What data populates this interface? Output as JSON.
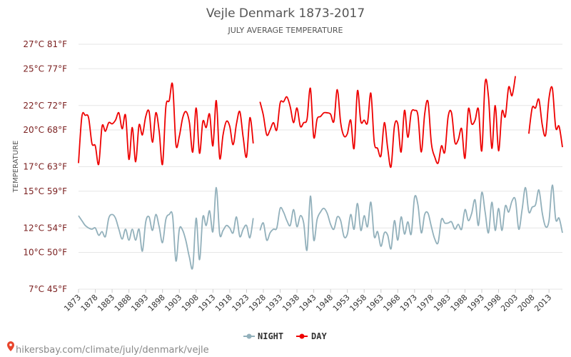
{
  "colors": {
    "night": "#92b0bb",
    "day": "#ee0000",
    "source_pin": "#e8452c"
  },
  "source_text": "hikersbay.com/climate/july/denmark/vejle",
  "chart_data": {
    "type": "line",
    "title": "Vejle Denmark 1873-2017",
    "subtitle": "JULY AVERAGE TEMPERATURE",
    "ylabel": "TEMPERATURE",
    "ylim": [
      7,
      27
    ],
    "yticks": [
      {
        "value": 7,
        "label": "7°C 45°F"
      },
      {
        "value": 10,
        "label": "10°C 50°F"
      },
      {
        "value": 12,
        "label": "12°C 54°F"
      },
      {
        "value": 15,
        "label": "15°C 59°F"
      },
      {
        "value": 17,
        "label": "17°C 63°F"
      },
      {
        "value": 20,
        "label": "20°C 68°F"
      },
      {
        "value": 22,
        "label": "22°C 72°F"
      },
      {
        "value": 25,
        "label": "25°C 77°F"
      },
      {
        "value": 27,
        "label": "27°C 81°F"
      }
    ],
    "xlim": [
      1873,
      2017
    ],
    "xticks": [
      1873,
      1878,
      1883,
      1888,
      1893,
      1898,
      1903,
      1908,
      1913,
      1918,
      1923,
      1928,
      1933,
      1938,
      1943,
      1948,
      1953,
      1958,
      1963,
      1968,
      1973,
      1978,
      1983,
      1988,
      1993,
      1998,
      2003,
      2008,
      2013
    ],
    "legend": [
      "NIGHT",
      "DAY"
    ],
    "legend_position": "bottom",
    "grid": true,
    "series": [
      {
        "name": "NIGHT",
        "points": [
          [
            1873,
            13.0
          ],
          [
            1874,
            12.6
          ],
          [
            1875,
            12.2
          ],
          [
            1876,
            12.0
          ],
          [
            1877,
            11.9
          ],
          [
            1878,
            12.0
          ],
          [
            1879,
            11.4
          ],
          [
            1880,
            11.7
          ],
          [
            1881,
            11.3
          ],
          [
            1882,
            12.8
          ],
          [
            1883,
            13.1
          ],
          [
            1884,
            12.8
          ],
          [
            1885,
            11.9
          ],
          [
            1886,
            11.1
          ],
          [
            1887,
            11.9
          ],
          [
            1888,
            11.0
          ],
          [
            1889,
            11.9
          ],
          [
            1890,
            11.0
          ],
          [
            1891,
            11.9
          ],
          [
            1892,
            10.1
          ],
          [
            1893,
            12.5
          ],
          [
            1894,
            12.9
          ],
          [
            1895,
            11.8
          ],
          [
            1896,
            13.1
          ],
          [
            1897,
            12.1
          ],
          [
            1898,
            10.8
          ],
          [
            1899,
            12.7
          ],
          [
            1900,
            13.1
          ],
          [
            1901,
            13.0
          ],
          [
            1902,
            9.3
          ],
          [
            1903,
            11.9
          ],
          [
            1904,
            11.8
          ],
          [
            1905,
            10.9
          ],
          [
            1906,
            9.6
          ],
          [
            1907,
            8.8
          ],
          [
            1908,
            12.8
          ],
          [
            1909,
            9.4
          ],
          [
            1910,
            12.9
          ],
          [
            1911,
            12.2
          ],
          [
            1912,
            13.4
          ],
          [
            1913,
            11.7
          ],
          [
            1914,
            15.3
          ],
          [
            1915,
            11.5
          ],
          [
            1916,
            11.8
          ],
          [
            1917,
            12.2
          ],
          [
            1918,
            12.0
          ],
          [
            1919,
            11.6
          ],
          [
            1920,
            12.9
          ],
          [
            1921,
            11.3
          ],
          [
            1922,
            11.9
          ],
          [
            1923,
            12.2
          ],
          [
            1924,
            11.2
          ],
          [
            1925,
            12.8
          ],
          [
            1927,
            11.8
          ],
          [
            1928,
            12.4
          ],
          [
            1929,
            11.0
          ],
          [
            1930,
            11.6
          ],
          [
            1931,
            11.9
          ],
          [
            1932,
            12.0
          ],
          [
            1933,
            13.6
          ],
          [
            1934,
            13.3
          ],
          [
            1935,
            12.6
          ],
          [
            1936,
            12.2
          ],
          [
            1937,
            13.5
          ],
          [
            1938,
            12.1
          ],
          [
            1939,
            13.0
          ],
          [
            1940,
            12.4
          ],
          [
            1941,
            10.2
          ],
          [
            1942,
            14.6
          ],
          [
            1943,
            11.0
          ],
          [
            1944,
            12.7
          ],
          [
            1945,
            13.3
          ],
          [
            1946,
            13.6
          ],
          [
            1947,
            13.2
          ],
          [
            1948,
            12.3
          ],
          [
            1949,
            11.9
          ],
          [
            1950,
            12.9
          ],
          [
            1951,
            12.6
          ],
          [
            1952,
            11.3
          ],
          [
            1953,
            11.5
          ],
          [
            1954,
            13.1
          ],
          [
            1955,
            11.9
          ],
          [
            1956,
            14.0
          ],
          [
            1957,
            11.8
          ],
          [
            1958,
            13.0
          ],
          [
            1959,
            12.1
          ],
          [
            1960,
            14.1
          ],
          [
            1961,
            11.3
          ],
          [
            1962,
            11.7
          ],
          [
            1963,
            10.5
          ],
          [
            1964,
            11.6
          ],
          [
            1965,
            11.4
          ],
          [
            1966,
            10.3
          ],
          [
            1967,
            12.6
          ],
          [
            1968,
            11.0
          ],
          [
            1969,
            12.9
          ],
          [
            1970,
            11.5
          ],
          [
            1971,
            12.5
          ],
          [
            1972,
            11.5
          ],
          [
            1973,
            14.5
          ],
          [
            1974,
            13.9
          ],
          [
            1975,
            11.6
          ],
          [
            1976,
            13.1
          ],
          [
            1977,
            13.2
          ],
          [
            1978,
            12.1
          ],
          [
            1979,
            11.1
          ],
          [
            1980,
            10.8
          ],
          [
            1981,
            12.7
          ],
          [
            1982,
            12.4
          ],
          [
            1983,
            12.4
          ],
          [
            1984,
            12.5
          ],
          [
            1985,
            11.9
          ],
          [
            1986,
            12.3
          ],
          [
            1987,
            11.9
          ],
          [
            1988,
            13.5
          ],
          [
            1989,
            12.6
          ],
          [
            1990,
            13.2
          ],
          [
            1991,
            14.3
          ],
          [
            1992,
            12.2
          ],
          [
            1993,
            14.9
          ],
          [
            1994,
            13.3
          ],
          [
            1995,
            11.6
          ],
          [
            1996,
            14.1
          ],
          [
            1997,
            11.8
          ],
          [
            1998,
            13.6
          ],
          [
            1999,
            11.8
          ],
          [
            2000,
            13.8
          ],
          [
            2001,
            13.3
          ],
          [
            2002,
            14.2
          ],
          [
            2003,
            14.3
          ],
          [
            2004,
            11.9
          ],
          [
            2005,
            13.5
          ],
          [
            2006,
            15.3
          ],
          [
            2007,
            13.3
          ],
          [
            2008,
            13.7
          ],
          [
            2009,
            13.9
          ],
          [
            2010,
            15.1
          ],
          [
            2011,
            13.2
          ],
          [
            2012,
            12.1
          ],
          [
            2013,
            12.6
          ],
          [
            2014,
            15.5
          ],
          [
            2015,
            12.7
          ],
          [
            2016,
            12.8
          ],
          [
            2017,
            11.6
          ]
        ]
      },
      {
        "name": "DAY",
        "points": [
          [
            1873,
            17.3
          ],
          [
            1874,
            21.1
          ],
          [
            1875,
            21.2
          ],
          [
            1876,
            21.0
          ],
          [
            1877,
            18.9
          ],
          [
            1878,
            18.7
          ],
          [
            1879,
            17.2
          ],
          [
            1880,
            20.3
          ],
          [
            1881,
            19.9
          ],
          [
            1882,
            20.6
          ],
          [
            1883,
            20.5
          ],
          [
            1884,
            20.8
          ],
          [
            1885,
            21.4
          ],
          [
            1886,
            20.1
          ],
          [
            1887,
            21.2
          ],
          [
            1888,
            17.6
          ],
          [
            1889,
            20.2
          ],
          [
            1890,
            17.4
          ],
          [
            1891,
            20.4
          ],
          [
            1892,
            19.6
          ],
          [
            1893,
            21.1
          ],
          [
            1894,
            21.5
          ],
          [
            1895,
            19.0
          ],
          [
            1896,
            21.4
          ],
          [
            1897,
            19.9
          ],
          [
            1898,
            17.2
          ],
          [
            1899,
            21.9
          ],
          [
            1900,
            22.4
          ],
          [
            1901,
            23.7
          ],
          [
            1902,
            18.8
          ],
          [
            1903,
            19.5
          ],
          [
            1904,
            21.0
          ],
          [
            1905,
            21.5
          ],
          [
            1906,
            20.6
          ],
          [
            1907,
            18.2
          ],
          [
            1908,
            21.8
          ],
          [
            1909,
            18.1
          ],
          [
            1910,
            20.7
          ],
          [
            1911,
            20.2
          ],
          [
            1912,
            21.3
          ],
          [
            1913,
            18.7
          ],
          [
            1914,
            22.4
          ],
          [
            1915,
            17.7
          ],
          [
            1916,
            19.6
          ],
          [
            1917,
            20.7
          ],
          [
            1918,
            20.3
          ],
          [
            1919,
            18.8
          ],
          [
            1920,
            20.5
          ],
          [
            1921,
            21.5
          ],
          [
            1922,
            19.4
          ],
          [
            1923,
            17.8
          ],
          [
            1924,
            21.0
          ],
          [
            1925,
            18.9
          ],
          [
            1927,
            22.3
          ],
          [
            1928,
            21.2
          ],
          [
            1929,
            19.6
          ],
          [
            1930,
            20.0
          ],
          [
            1931,
            20.6
          ],
          [
            1932,
            20.0
          ],
          [
            1933,
            22.2
          ],
          [
            1934,
            22.3
          ],
          [
            1935,
            22.7
          ],
          [
            1936,
            21.9
          ],
          [
            1937,
            20.6
          ],
          [
            1938,
            21.8
          ],
          [
            1939,
            20.3
          ],
          [
            1940,
            20.6
          ],
          [
            1941,
            20.9
          ],
          [
            1942,
            23.4
          ],
          [
            1943,
            19.4
          ],
          [
            1944,
            20.9
          ],
          [
            1945,
            21.1
          ],
          [
            1946,
            21.4
          ],
          [
            1947,
            21.4
          ],
          [
            1948,
            21.3
          ],
          [
            1949,
            20.7
          ],
          [
            1950,
            23.3
          ],
          [
            1951,
            20.6
          ],
          [
            1952,
            19.5
          ],
          [
            1953,
            19.7
          ],
          [
            1954,
            20.8
          ],
          [
            1955,
            18.5
          ],
          [
            1956,
            23.2
          ],
          [
            1957,
            20.7
          ],
          [
            1958,
            20.8
          ],
          [
            1959,
            20.6
          ],
          [
            1960,
            23.0
          ],
          [
            1961,
            19.0
          ],
          [
            1962,
            18.5
          ],
          [
            1963,
            17.9
          ],
          [
            1964,
            20.6
          ],
          [
            1965,
            18.5
          ],
          [
            1966,
            17.0
          ],
          [
            1967,
            20.3
          ],
          [
            1968,
            20.5
          ],
          [
            1969,
            18.2
          ],
          [
            1970,
            21.6
          ],
          [
            1971,
            19.4
          ],
          [
            1972,
            21.4
          ],
          [
            1973,
            21.6
          ],
          [
            1974,
            21.2
          ],
          [
            1975,
            18.2
          ],
          [
            1976,
            21.3
          ],
          [
            1977,
            22.3
          ],
          [
            1978,
            18.9
          ],
          [
            1979,
            17.8
          ],
          [
            1980,
            17.3
          ],
          [
            1981,
            18.7
          ],
          [
            1982,
            18.2
          ],
          [
            1983,
            21.1
          ],
          [
            1984,
            21.4
          ],
          [
            1985,
            19.0
          ],
          [
            1986,
            19.2
          ],
          [
            1987,
            20.1
          ],
          [
            1988,
            17.7
          ],
          [
            1989,
            21.7
          ],
          [
            1990,
            20.5
          ],
          [
            1991,
            20.8
          ],
          [
            1992,
            21.7
          ],
          [
            1993,
            18.3
          ],
          [
            1994,
            23.9
          ],
          [
            1995,
            22.7
          ],
          [
            1996,
            18.5
          ],
          [
            1997,
            22.0
          ],
          [
            1998,
            18.3
          ],
          [
            1999,
            21.5
          ],
          [
            2000,
            21.1
          ],
          [
            2001,
            23.5
          ],
          [
            2002,
            22.8
          ],
          [
            2003,
            24.4
          ],
          [
            2007,
            19.7
          ],
          [
            2008,
            21.8
          ],
          [
            2009,
            21.8
          ],
          [
            2010,
            22.5
          ],
          [
            2011,
            20.4
          ],
          [
            2012,
            19.6
          ],
          [
            2013,
            22.6
          ],
          [
            2014,
            23.4
          ],
          [
            2015,
            20.2
          ],
          [
            2016,
            20.3
          ],
          [
            2017,
            18.6
          ]
        ]
      }
    ]
  }
}
